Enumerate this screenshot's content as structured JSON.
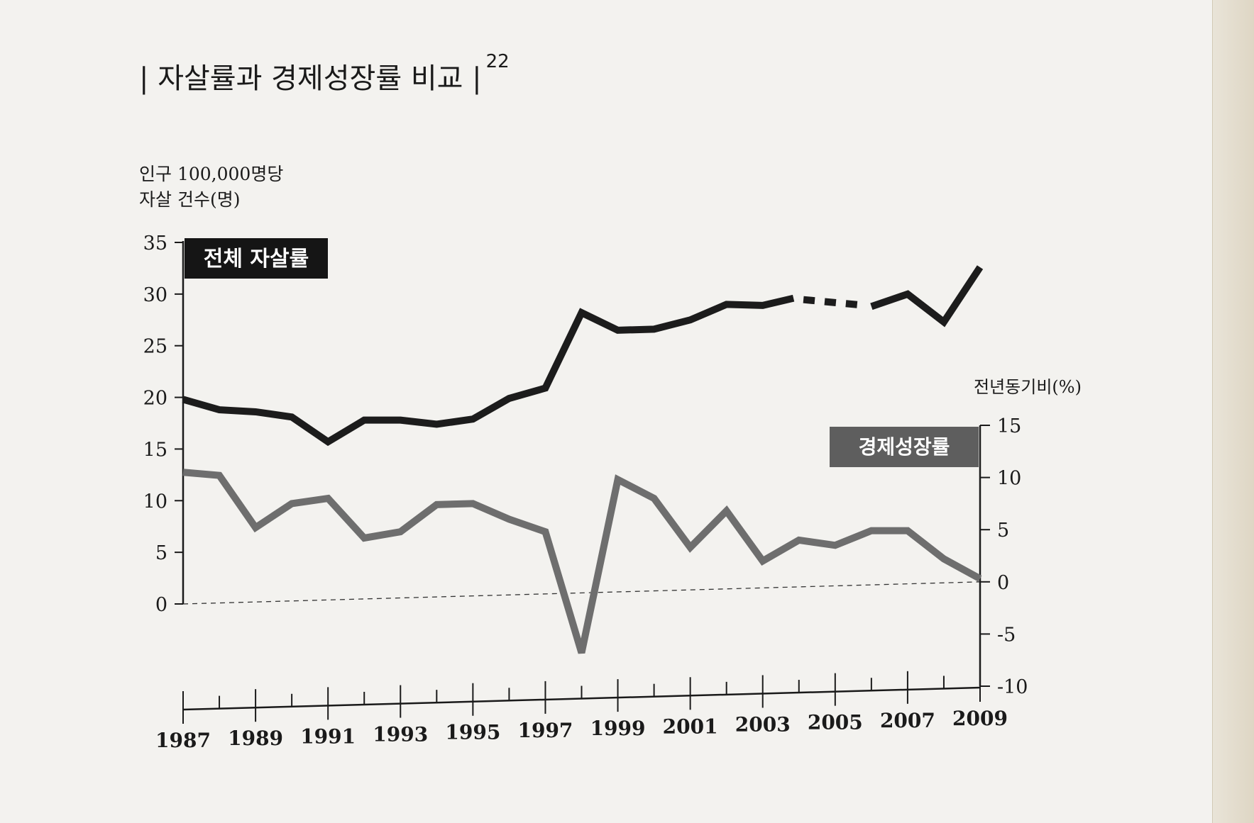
{
  "title": {
    "text": "자살률과 경제성장률 비교",
    "footnote": "22"
  },
  "chart_data": {
    "type": "line",
    "title": "자살률과 경제성장률 비교",
    "x": [
      1987,
      1988,
      1989,
      1990,
      1991,
      1992,
      1993,
      1994,
      1995,
      1996,
      1997,
      1998,
      1999,
      2000,
      2001,
      2002,
      2003,
      2004,
      2005,
      2006,
      2007,
      2008,
      2009
    ],
    "xticks_labeled": [
      "1987",
      "1989",
      "1991",
      "1993",
      "1995",
      "1997",
      "1999",
      "2001",
      "2003",
      "2005",
      "2007",
      "2009"
    ],
    "left_axis": {
      "label_line1": "인구 100,000명당",
      "label_line2": "자살 건수(명)",
      "ylim": [
        0,
        35
      ],
      "ticks": [
        "0",
        "5",
        "10",
        "15",
        "20",
        "25",
        "30",
        "35"
      ]
    },
    "right_axis": {
      "label": "전년동기비(%)",
      "ylim": [
        -10,
        15
      ],
      "ticks": [
        "-10",
        "-5",
        "0",
        "5",
        "10",
        "15"
      ]
    },
    "series": [
      {
        "name": "전체 자살률",
        "axis": "left",
        "color": "#1c1c1c",
        "values": [
          19.8,
          18.8,
          18.6,
          18.1,
          15.7,
          17.8,
          17.8,
          17.4,
          17.9,
          19.9,
          20.9,
          28.2,
          26.5,
          26.6,
          27.5,
          29.0,
          28.9,
          29.5,
          null,
          28.8,
          30.0,
          27.3,
          32.6
        ],
        "dashed_segments": [
          [
            2003,
            2006
          ]
        ]
      },
      {
        "name": "경제성장률",
        "axis": "right",
        "color": "#6e6e6e",
        "values": [
          10.5,
          10.2,
          5.2,
          7.5,
          8.0,
          4.2,
          4.8,
          7.4,
          7.5,
          6.0,
          4.8,
          -6.8,
          9.8,
          8.0,
          3.3,
          6.8,
          2.0,
          4.0,
          3.5,
          4.9,
          4.9,
          2.2,
          0.3
        ]
      }
    ],
    "reference_line": {
      "axis": "right",
      "value": 0,
      "style": "dashed"
    }
  },
  "colors": {
    "background": "#f3f2ef",
    "axis": "#1a1a1a",
    "suicide_line": "#1c1c1c",
    "growth_line": "#6e6e6e",
    "legend_dark": "#151515",
    "legend_gray": "#5e5e5e"
  }
}
